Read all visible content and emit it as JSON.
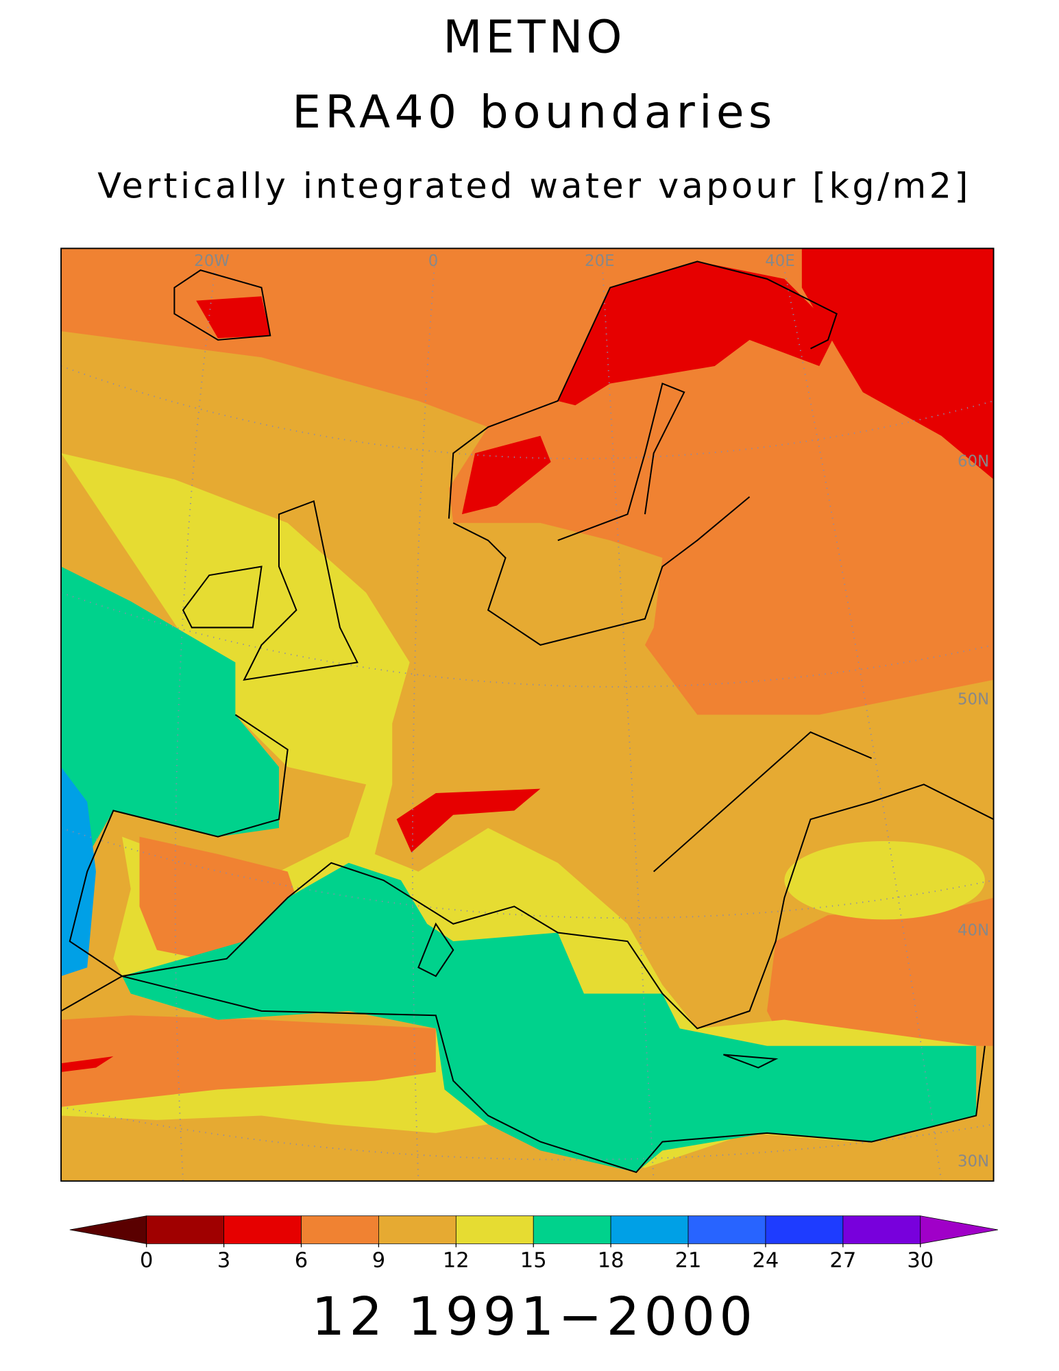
{
  "title": "METNO",
  "subtitle": "ERA40 boundaries",
  "variable": "Vertically integrated water vapour [kg/m2]",
  "map": {
    "grid_labels": [
      "20W",
      "0",
      "20E",
      "40E",
      "60N",
      "50N",
      "40N",
      "30N"
    ]
  },
  "colorbar": {
    "levels": [
      0,
      3,
      6,
      9,
      12,
      15,
      18,
      21,
      24,
      27,
      30
    ],
    "colors": [
      "#5a0000",
      "#a00000",
      "#e60000",
      "#f08232",
      "#e6aa32",
      "#e6dc32",
      "#00d28c",
      "#00a0e6",
      "#2864ff",
      "#1e3cff",
      "#7800dc",
      "#a000c8"
    ]
  },
  "period": "12 1991−2000"
}
